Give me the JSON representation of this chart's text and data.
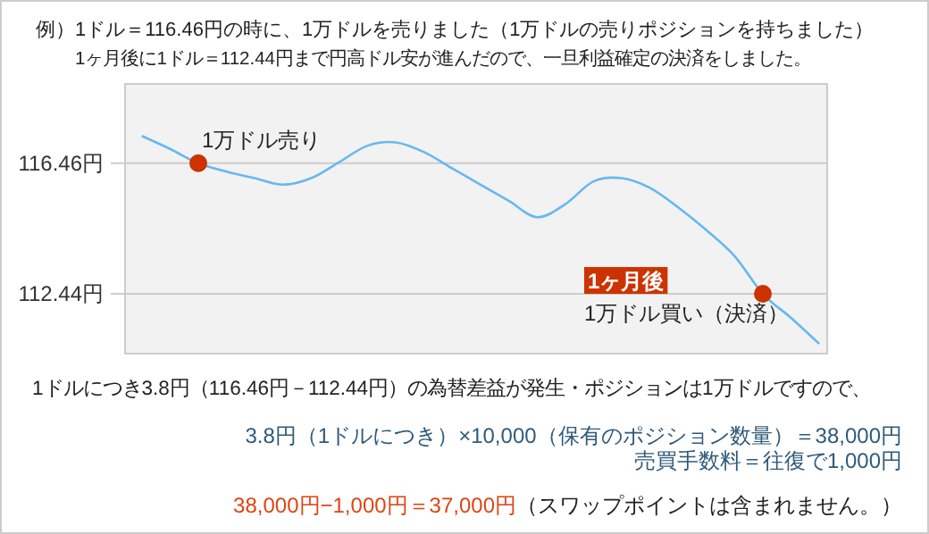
{
  "chart_data": {
    "type": "line",
    "title": "例）1ドル＝116.46円の時に、1万ドルを売りました（1万ドルの売りポジションを持ちました）",
    "subtitle": "1ヶ月後に1ドル＝112.44円まで円高ドル安が進んだので、一旦利益確定の決済をしました。",
    "categories": [
      null,
      null,
      null,
      null,
      null,
      null,
      null,
      null,
      null,
      null,
      null,
      null,
      null,
      null,
      null,
      null,
      null,
      null,
      null,
      null,
      null,
      null,
      null,
      null,
      null
    ],
    "series": [
      {
        "color": "#66b8f0",
        "values": [
          117.3,
          116.9,
          116.46,
          116.2,
          116.0,
          115.8,
          116.0,
          116.5,
          117.0,
          117.1,
          116.8,
          116.3,
          115.8,
          115.3,
          114.8,
          115.2,
          115.9,
          116.0,
          115.7,
          115.1,
          114.4,
          113.6,
          112.44,
          111.7,
          110.9
        ]
      },
      {
        "type": "scatter",
        "color": "#cc3300",
        "marker": "circle",
        "values": [
          null,
          null,
          116.46,
          null,
          null,
          null,
          null,
          null,
          null,
          null,
          null,
          null,
          null,
          null,
          null,
          null,
          null,
          null,
          null,
          null,
          null,
          null,
          112.44,
          null,
          null
        ]
      }
    ],
    "ylim": [
      110.6,
      118.9
    ],
    "yticks": [
      {
        "value": 116.46,
        "label": "116.46円"
      },
      {
        "value": 112.44,
        "label": "112.44円"
      }
    ],
    "grid": "y",
    "tick_labels": "y",
    "annotations": [
      "1万ドル売り",
      "1ヶ月後",
      "1万ドル買い（決済）",
      "1ドルにつき3.8円（116.46円－112.44円）の為替差益が発生・ポジションは1万ドルですので、",
      "3.8円（1ドルにつき）×10,000（保有のポジション数量）＝38,000円",
      "売買手数料＝往復で1,000円",
      "38,000円−1,000円＝37,000円",
      "（スワップポイントは含まれません。）"
    ]
  }
}
